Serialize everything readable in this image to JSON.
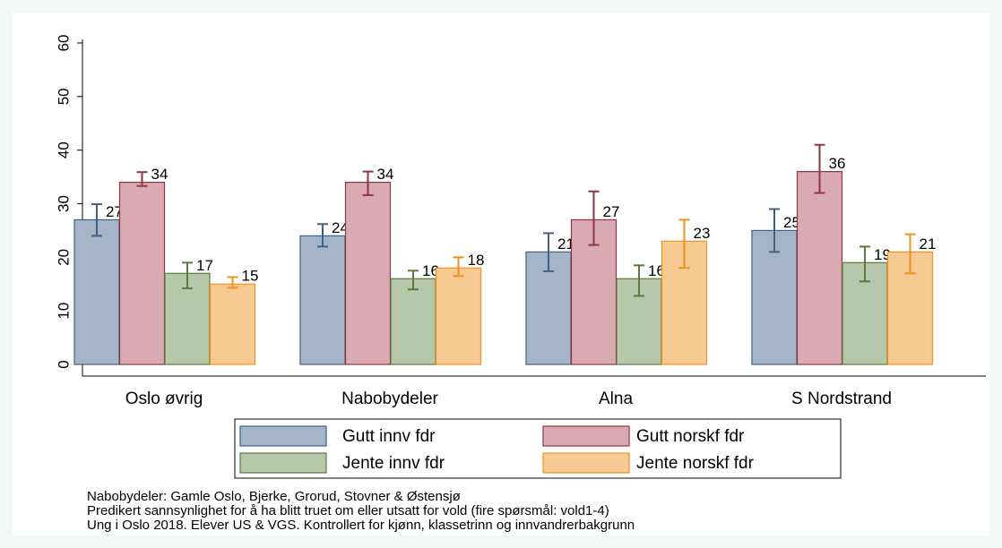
{
  "chart_data": {
    "type": "bar",
    "categories": [
      "Oslo øvrig",
      "Nabobydeler",
      "Alna",
      "S Nordstrand"
    ],
    "series": [
      {
        "name": "Gutt innv fdr",
        "color": "#a4b5c9",
        "edge": "#3f6187",
        "values": [
          27,
          24,
          21,
          25
        ],
        "ci_low": [
          24,
          22,
          17.4,
          21
        ],
        "ci_high": [
          29.9,
          26.2,
          24.5,
          29
        ]
      },
      {
        "name": "Gutt norskf fdr",
        "color": "#d9aab4",
        "edge": "#90353f",
        "values": [
          34,
          34,
          27,
          36
        ],
        "ci_low": [
          33.3,
          31.6,
          22.3,
          32
        ],
        "ci_high": [
          35.9,
          36,
          32.3,
          41
        ]
      },
      {
        "name": "Jente innv fdr",
        "color": "#b6c8a9",
        "edge": "#5b7b40",
        "values": [
          17,
          16,
          16,
          19
        ],
        "ci_low": [
          14.2,
          14,
          12.8,
          15.5
        ],
        "ci_high": [
          19,
          17.5,
          18.5,
          22
        ]
      },
      {
        "name": "Jente norskf fdr",
        "color": "#f7ca94",
        "edge": "#ef921d",
        "values": [
          15,
          18,
          23,
          21
        ],
        "ci_low": [
          14.3,
          16.5,
          18,
          17
        ],
        "ci_high": [
          16.3,
          20,
          27,
          24.3
        ]
      }
    ],
    "ylim": [
      0,
      60
    ],
    "yticks": [
      0,
      10,
      20,
      30,
      40,
      50,
      60
    ],
    "value_labels_shown": true,
    "notes": [
      "Nabobydeler: Gamle Oslo, Bjerke, Grorud, Stovner & Østensjø",
      "Predikert sannsynlighet for å ha blitt truet om eller utsatt for vold (fire spørsmål: vold1-4)",
      "Ung i Oslo 2018. Elever US & VGS. Kontrollert for kjønn, klassetrinn og innvandrerbakgrunn"
    ]
  }
}
